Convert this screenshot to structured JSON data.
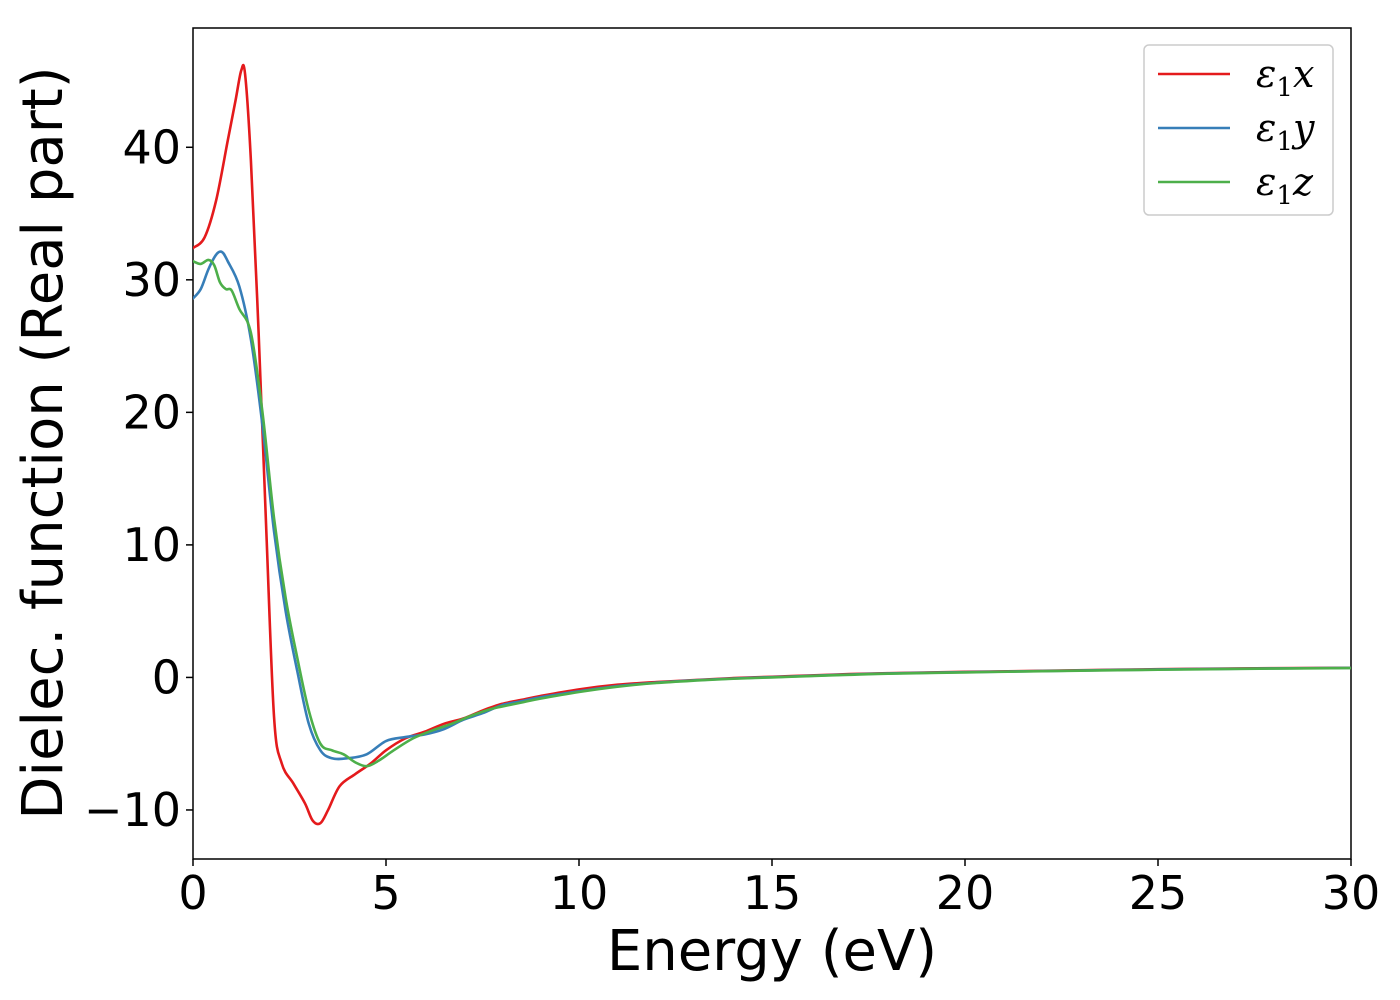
{
  "chart_data": {
    "type": "line",
    "title": "",
    "xlabel": "Energy (eV)",
    "ylabel": "Dielec. function (Real part)",
    "xlim": [
      0,
      30
    ],
    "ylim": [
      -13.7,
      49
    ],
    "xticks": [
      0,
      5,
      10,
      15,
      20,
      25,
      30
    ],
    "xtick_labels": [
      "0",
      "5",
      "10",
      "15",
      "20",
      "25",
      "30"
    ],
    "yticks": [
      -10,
      0,
      10,
      20,
      30,
      40
    ],
    "ytick_labels": [
      "−10",
      "0",
      "10",
      "20",
      "30",
      "40"
    ],
    "grid": false,
    "legend": {
      "placement": "top-right",
      "entries": [
        {
          "base": "ε",
          "sub": "1",
          "suffix": "x"
        },
        {
          "base": "ε",
          "sub": "1",
          "suffix": "y"
        },
        {
          "base": "ε",
          "sub": "1",
          "suffix": "z"
        }
      ]
    },
    "series": [
      {
        "color": "#e41a1c",
        "points": [
          [
            0,
            32.4
          ],
          [
            0.3,
            33.2
          ],
          [
            0.6,
            36
          ],
          [
            0.9,
            40.5
          ],
          [
            1.1,
            43.5
          ],
          [
            1.25,
            45.8
          ],
          [
            1.35,
            45.5
          ],
          [
            1.5,
            39
          ],
          [
            1.7,
            26
          ],
          [
            1.9,
            11
          ],
          [
            2.1,
            -3
          ],
          [
            2.3,
            -6.5
          ],
          [
            2.6,
            -8
          ],
          [
            2.9,
            -9.5
          ],
          [
            3.1,
            -10.8
          ],
          [
            3.3,
            -11
          ],
          [
            3.5,
            -10
          ],
          [
            3.8,
            -8.2
          ],
          [
            4.2,
            -7.3
          ],
          [
            4.6,
            -6.5
          ],
          [
            5,
            -5.5
          ],
          [
            5.5,
            -4.6
          ],
          [
            6,
            -4.1
          ],
          [
            6.5,
            -3.5
          ],
          [
            7,
            -3.1
          ],
          [
            7.5,
            -2.5
          ],
          [
            8,
            -2
          ],
          [
            8.5,
            -1.7
          ],
          [
            9,
            -1.4
          ],
          [
            10,
            -0.9
          ],
          [
            11,
            -0.55
          ],
          [
            12,
            -0.35
          ],
          [
            13,
            -0.2
          ],
          [
            14,
            -0.05
          ],
          [
            15,
            0.05
          ],
          [
            16,
            0.15
          ],
          [
            17,
            0.25
          ],
          [
            18,
            0.32
          ],
          [
            20,
            0.42
          ],
          [
            22,
            0.5
          ],
          [
            25,
            0.62
          ],
          [
            28,
            0.7
          ],
          [
            30,
            0.73
          ]
        ]
      },
      {
        "color": "#377eb8",
        "points": [
          [
            0,
            28.6
          ],
          [
            0.2,
            29.3
          ],
          [
            0.4,
            30.8
          ],
          [
            0.6,
            31.9
          ],
          [
            0.75,
            32.1
          ],
          [
            0.9,
            31.4
          ],
          [
            1.2,
            29.5
          ],
          [
            1.5,
            25.5
          ],
          [
            1.8,
            19
          ],
          [
            2.1,
            11
          ],
          [
            2.4,
            5
          ],
          [
            2.7,
            0.5
          ],
          [
            3.0,
            -3.5
          ],
          [
            3.3,
            -5.5
          ],
          [
            3.6,
            -6.1
          ],
          [
            4.0,
            -6.1
          ],
          [
            4.5,
            -5.8
          ],
          [
            5.0,
            -4.8
          ],
          [
            5.5,
            -4.5
          ],
          [
            6.0,
            -4.3
          ],
          [
            6.5,
            -3.9
          ],
          [
            7,
            -3.2
          ],
          [
            7.5,
            -2.7
          ],
          [
            8,
            -2.1
          ],
          [
            8.5,
            -1.8
          ],
          [
            9,
            -1.5
          ],
          [
            10,
            -1.05
          ],
          [
            11,
            -0.65
          ],
          [
            12,
            -0.4
          ],
          [
            13,
            -0.22
          ],
          [
            14,
            -0.08
          ],
          [
            15,
            0.02
          ],
          [
            16,
            0.12
          ],
          [
            17,
            0.22
          ],
          [
            18,
            0.3
          ],
          [
            20,
            0.4
          ],
          [
            22,
            0.48
          ],
          [
            25,
            0.6
          ],
          [
            28,
            0.68
          ],
          [
            30,
            0.72
          ]
        ]
      },
      {
        "color": "#4daf4a",
        "points": [
          [
            0,
            31.4
          ],
          [
            0.2,
            31.2
          ],
          [
            0.4,
            31.5
          ],
          [
            0.55,
            31.1
          ],
          [
            0.7,
            29.8
          ],
          [
            0.85,
            29.3
          ],
          [
            1.0,
            29.2
          ],
          [
            1.2,
            27.8
          ],
          [
            1.5,
            26
          ],
          [
            1.8,
            20
          ],
          [
            2.1,
            12
          ],
          [
            2.4,
            6
          ],
          [
            2.7,
            1.5
          ],
          [
            3.0,
            -2.5
          ],
          [
            3.3,
            -5
          ],
          [
            3.6,
            -5.5
          ],
          [
            3.9,
            -5.8
          ],
          [
            4.2,
            -6.4
          ],
          [
            4.5,
            -6.7
          ],
          [
            4.8,
            -6.3
          ],
          [
            5.2,
            -5.5
          ],
          [
            5.7,
            -4.6
          ],
          [
            6.2,
            -4
          ],
          [
            6.7,
            -3.5
          ],
          [
            7.2,
            -2.9
          ],
          [
            7.7,
            -2.4
          ],
          [
            8,
            -2.2
          ],
          [
            8.5,
            -1.9
          ],
          [
            9,
            -1.6
          ],
          [
            10,
            -1.1
          ],
          [
            11,
            -0.7
          ],
          [
            12,
            -0.42
          ],
          [
            13,
            -0.24
          ],
          [
            14,
            -0.1
          ],
          [
            15,
            0
          ],
          [
            16,
            0.1
          ],
          [
            17,
            0.2
          ],
          [
            18,
            0.28
          ],
          [
            20,
            0.38
          ],
          [
            22,
            0.47
          ],
          [
            25,
            0.58
          ],
          [
            28,
            0.67
          ],
          [
            30,
            0.71
          ]
        ]
      }
    ]
  }
}
